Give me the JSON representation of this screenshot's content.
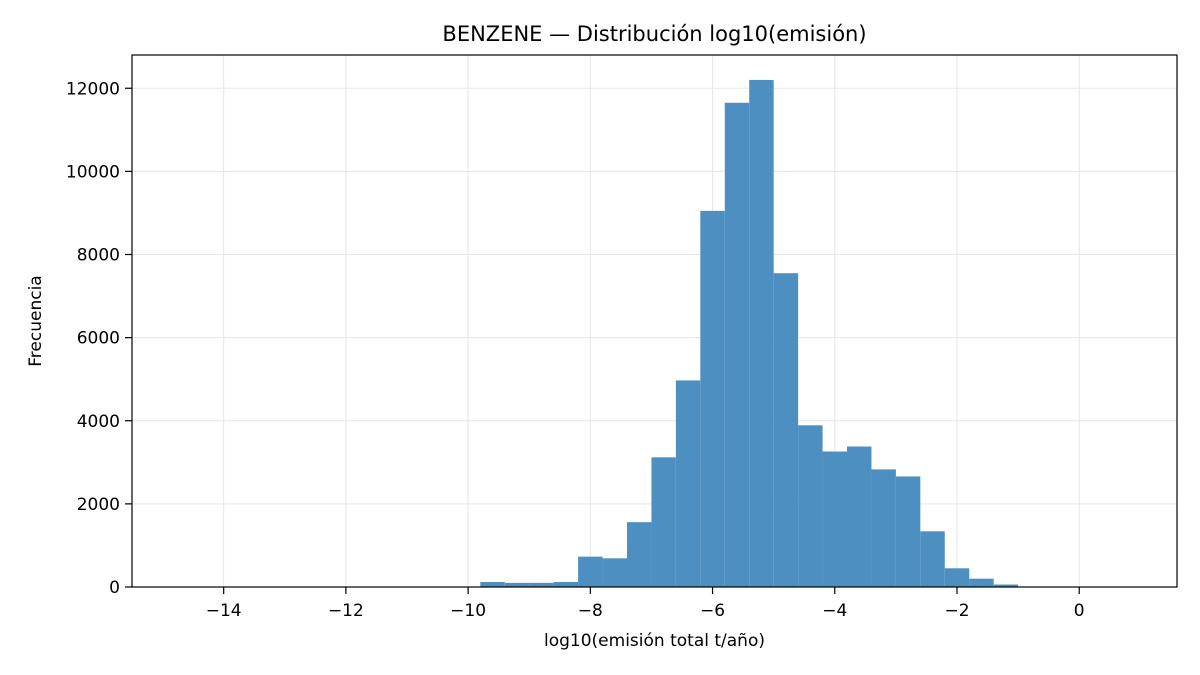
{
  "chart_data": {
    "type": "bar",
    "title": "BENZENE — Distribución log10(emisión)",
    "xlabel": "log10(emisión total t/año)",
    "ylabel": "Frecuencia",
    "xlim": [
      -15.5,
      1.6
    ],
    "ylim": [
      0,
      12800
    ],
    "grid": true,
    "bin_width": 0.4,
    "bins": [
      {
        "x0": -9.8,
        "x1": -9.4,
        "count": 120
      },
      {
        "x0": -9.4,
        "x1": -9.0,
        "count": 100
      },
      {
        "x0": -9.0,
        "x1": -8.6,
        "count": 100
      },
      {
        "x0": -8.6,
        "x1": -8.2,
        "count": 120
      },
      {
        "x0": -8.2,
        "x1": -7.8,
        "count": 730
      },
      {
        "x0": -7.8,
        "x1": -7.4,
        "count": 690
      },
      {
        "x0": -7.4,
        "x1": -7.0,
        "count": 1560
      },
      {
        "x0": -7.0,
        "x1": -6.6,
        "count": 3120
      },
      {
        "x0": -6.6,
        "x1": -6.2,
        "count": 4970
      },
      {
        "x0": -6.2,
        "x1": -5.8,
        "count": 9050
      },
      {
        "x0": -5.8,
        "x1": -5.4,
        "count": 11650
      },
      {
        "x0": -5.4,
        "x1": -5.0,
        "count": 12200
      },
      {
        "x0": -5.0,
        "x1": -4.6,
        "count": 7550
      },
      {
        "x0": -4.6,
        "x1": -4.2,
        "count": 3890
      },
      {
        "x0": -4.2,
        "x1": -3.8,
        "count": 3260
      },
      {
        "x0": -3.8,
        "x1": -3.4,
        "count": 3380
      },
      {
        "x0": -3.4,
        "x1": -3.0,
        "count": 2830
      },
      {
        "x0": -3.0,
        "x1": -2.6,
        "count": 2660
      },
      {
        "x0": -2.6,
        "x1": -2.2,
        "count": 1340
      },
      {
        "x0": -2.2,
        "x1": -1.8,
        "count": 450
      },
      {
        "x0": -1.8,
        "x1": -1.4,
        "count": 200
      },
      {
        "x0": -1.4,
        "x1": -1.0,
        "count": 60
      }
    ],
    "x_ticks": [
      -14,
      -12,
      -10,
      -8,
      -6,
      -4,
      -2,
      0
    ],
    "x_tick_labels": [
      "−14",
      "−12",
      "−10",
      "−8",
      "−6",
      "−4",
      "−2",
      "0"
    ],
    "y_ticks": [
      0,
      2000,
      4000,
      6000,
      8000,
      10000,
      12000
    ],
    "y_tick_labels": [
      "0",
      "2000",
      "4000",
      "6000",
      "8000",
      "10000",
      "12000"
    ],
    "bar_color": "#4c8fc0",
    "grid_color": "#e6e6e6"
  }
}
